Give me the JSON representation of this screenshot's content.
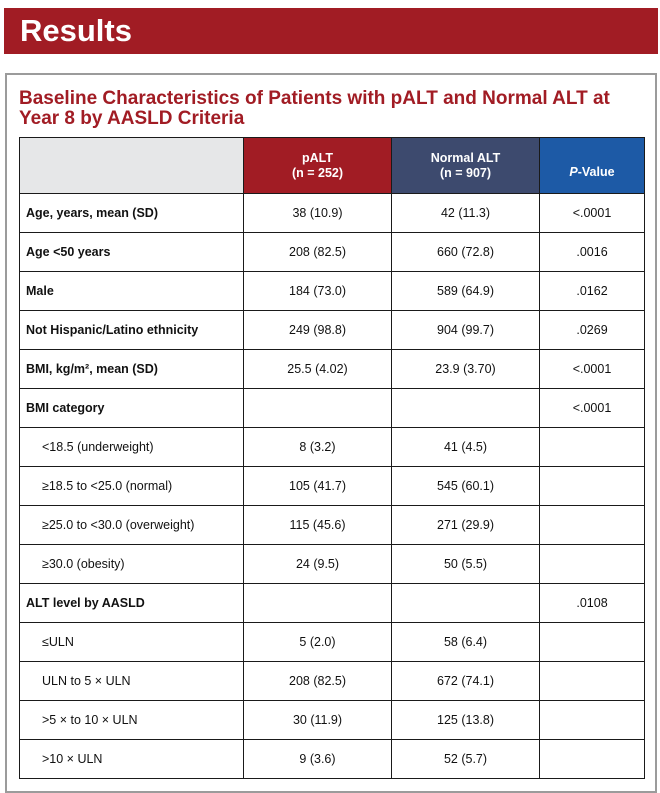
{
  "banner": {
    "title": "Results"
  },
  "card": {
    "title": "Baseline Characteristics of Patients with pALT and Normal ALT at Year 8 by AASLD Criteria"
  },
  "table": {
    "headers": {
      "palt": {
        "line1": "pALT",
        "line2": "(n = 252)"
      },
      "normal": {
        "line1": "Normal ALT",
        "line2": "(n = 907)"
      },
      "pvalue": {
        "italic": "P",
        "rest": "-Value"
      }
    },
    "rows": [
      {
        "label": "Age, years, mean (SD)",
        "palt": "38 (10.9)",
        "normal": "42 (11.3)",
        "p": "<.0001",
        "sub": false
      },
      {
        "label": "Age <50 years",
        "palt": "208 (82.5)",
        "normal": "660 (72.8)",
        "p": ".0016",
        "sub": false
      },
      {
        "label": "Male",
        "palt": "184 (73.0)",
        "normal": "589 (64.9)",
        "p": ".0162",
        "sub": false
      },
      {
        "label": "Not Hispanic/Latino ethnicity",
        "palt": "249 (98.8)",
        "normal": "904 (99.7)",
        "p": ".0269",
        "sub": false
      },
      {
        "label": "BMI, kg/m², mean (SD)",
        "palt": "25.5 (4.02)",
        "normal": "23.9 (3.70)",
        "p": "<.0001",
        "sub": false
      },
      {
        "label": "BMI category",
        "palt": "",
        "normal": "",
        "p": "<.0001",
        "sub": false
      },
      {
        "label": "<18.5 (underweight)",
        "palt": "8 (3.2)",
        "normal": "41 (4.5)",
        "p": "",
        "sub": true
      },
      {
        "label": "≥18.5 to <25.0 (normal)",
        "palt": "105 (41.7)",
        "normal": "545 (60.1)",
        "p": "",
        "sub": true
      },
      {
        "label": "≥25.0 to <30.0 (overweight)",
        "palt": "115 (45.6)",
        "normal": "271 (29.9)",
        "p": "",
        "sub": true
      },
      {
        "label": "≥30.0 (obesity)",
        "palt": "24 (9.5)",
        "normal": "50 (5.5)",
        "p": "",
        "sub": true
      },
      {
        "label": "ALT level by AASLD",
        "palt": "",
        "normal": "",
        "p": ".0108",
        "sub": false
      },
      {
        "label": "≤ULN",
        "palt": "5 (2.0)",
        "normal": "58 (6.4)",
        "p": "",
        "sub": true
      },
      {
        "label": "ULN to 5 × ULN",
        "palt": "208 (82.5)",
        "normal": "672 (74.1)",
        "p": "",
        "sub": true
      },
      {
        "label": ">5 × to 10 × ULN",
        "palt": "30 (11.9)",
        "normal": "125 (13.8)",
        "p": "",
        "sub": true
      },
      {
        "label": ">10 × ULN",
        "palt": "9 (3.6)",
        "normal": "52 (5.7)",
        "p": "",
        "sub": true
      }
    ]
  }
}
